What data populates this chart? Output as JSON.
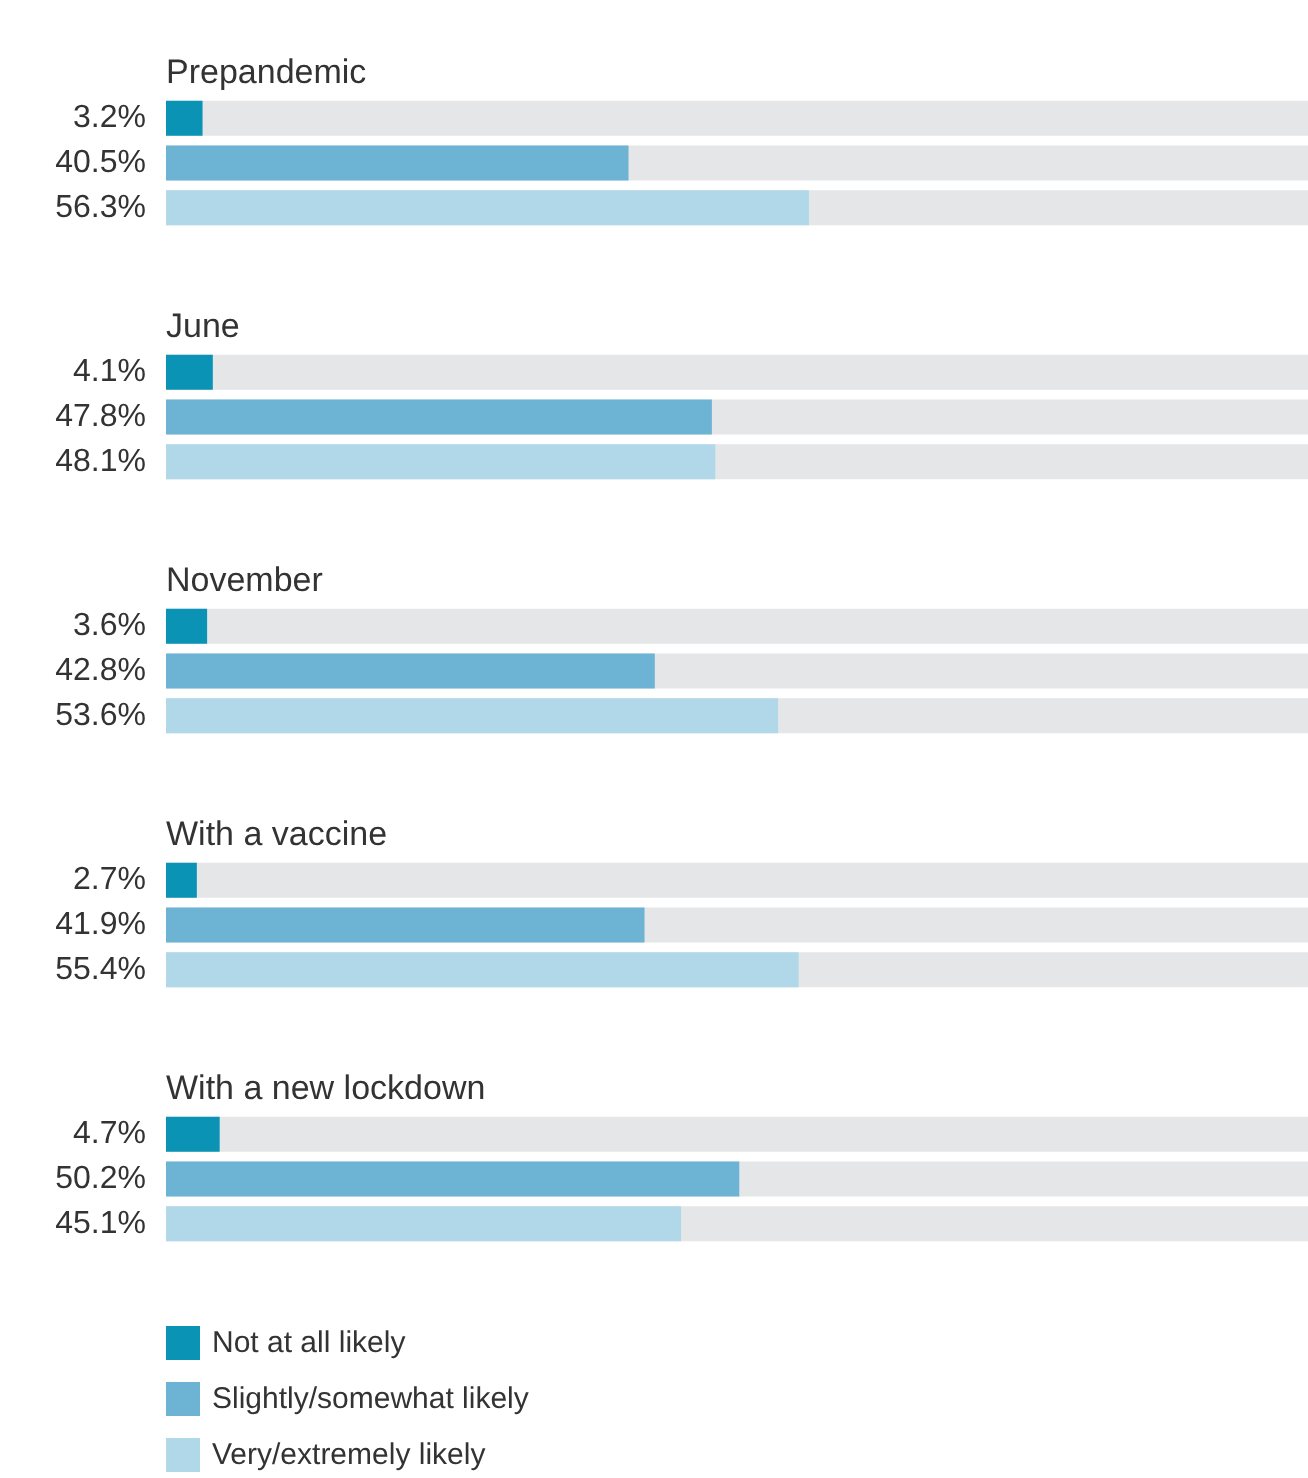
{
  "chart_data": {
    "type": "bar",
    "orientation": "horizontal",
    "categories": [
      "Prepandemic",
      "June",
      "November",
      "With a vaccine",
      "With a new lockdown"
    ],
    "series": [
      {
        "name": "Not at all likely",
        "color": "#0a93b5",
        "values": [
          3.2,
          4.1,
          3.6,
          2.7,
          4.7
        ],
        "value_labels": [
          "3.2%",
          "4.1%",
          "3.6%",
          "2.7%",
          "4.7%"
        ]
      },
      {
        "name": "Slightly/somewhat likely",
        "color": "#6db3d3",
        "values": [
          40.5,
          47.8,
          42.8,
          41.9,
          50.2
        ],
        "value_labels": [
          "40.5%",
          "47.8%",
          "42.8%",
          "41.9%",
          "50.2%"
        ]
      },
      {
        "name": "Very/extremely likely",
        "color": "#b0d8e8",
        "values": [
          56.3,
          48.1,
          53.6,
          55.4,
          45.1
        ],
        "value_labels": [
          "56.3%",
          "48.1%",
          "53.6%",
          "55.4%",
          "45.1%"
        ]
      }
    ],
    "xlim": [
      0,
      100
    ],
    "legend": "bottom left"
  }
}
